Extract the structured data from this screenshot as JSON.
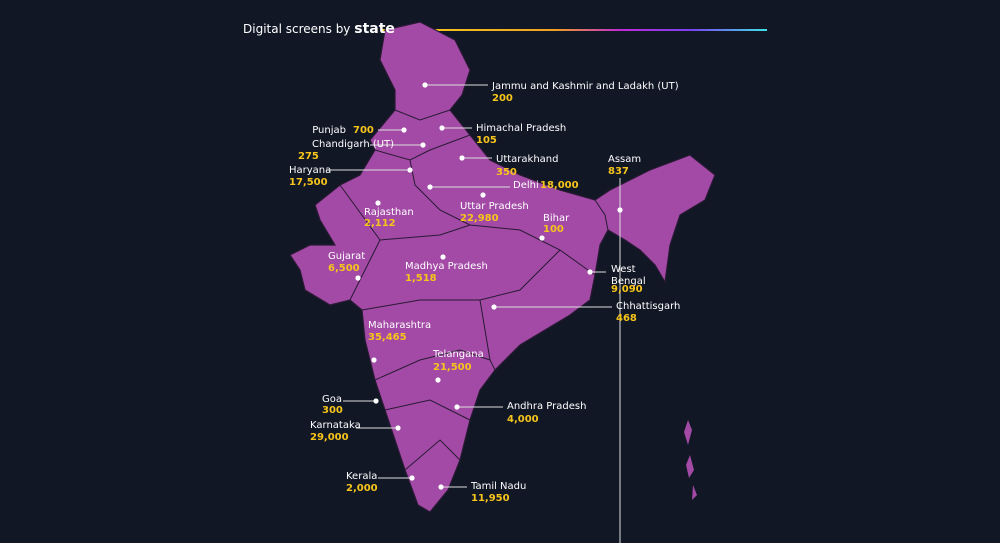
{
  "title": {
    "text": "Digital screens by",
    "emphasis": "state"
  },
  "states": [
    {
      "name": "Jammu and Kashmir and Ladakh (UT)",
      "value": "200"
    },
    {
      "name": "Himachal Pradesh",
      "value": "105"
    },
    {
      "name": "Punjab",
      "value": "700"
    },
    {
      "name": "Chandigarh (UT)",
      "value": "275"
    },
    {
      "name": "Uttarakhand",
      "value": "350"
    },
    {
      "name": "Haryana",
      "value": "17,500"
    },
    {
      "name": "Delhi",
      "value": "18,000"
    },
    {
      "name": "Uttar Pradesh",
      "value": "22,980"
    },
    {
      "name": "Rajasthan",
      "value": "2,112"
    },
    {
      "name": "Bihar",
      "value": "100"
    },
    {
      "name": "Assam",
      "value": "837"
    },
    {
      "name": "Gujarat",
      "value": "6,500"
    },
    {
      "name": "Madhya Pradesh",
      "value": "1,518"
    },
    {
      "name": "West Bengal",
      "value": "9,090"
    },
    {
      "name": "Chhattisgarh",
      "value": "468"
    },
    {
      "name": "Maharashtra",
      "value": "35,465"
    },
    {
      "name": "Telangana",
      "value": "21,500"
    },
    {
      "name": "Goa",
      "value": "300"
    },
    {
      "name": "Andhra Pradesh",
      "value": "4,000"
    },
    {
      "name": "Karnataka",
      "value": "29,000"
    },
    {
      "name": "Kerala",
      "value": "2,000"
    },
    {
      "name": "Tamil Nadu",
      "value": "11,950"
    }
  ]
}
